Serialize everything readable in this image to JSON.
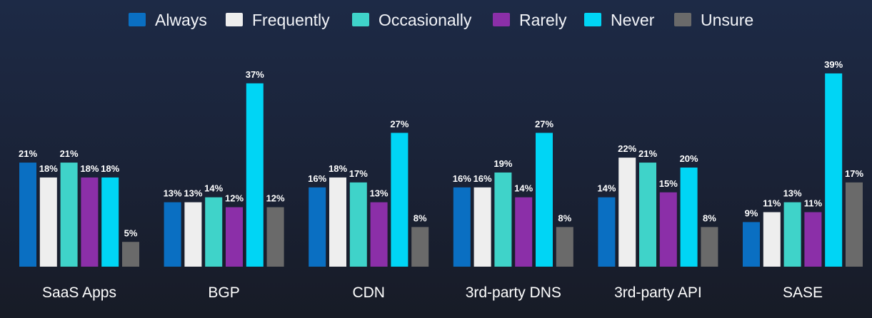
{
  "chart_data": {
    "type": "bar",
    "categories": [
      "SaaS Apps",
      "BGP",
      "CDN",
      "3rd-party DNS",
      "3rd-party API",
      "SASE"
    ],
    "series": [
      {
        "name": "Always",
        "color": "#0a6fc2",
        "values": [
          21,
          13,
          16,
          16,
          14,
          9
        ]
      },
      {
        "name": "Frequently",
        "color": "#eeeeee",
        "values": [
          18,
          13,
          18,
          16,
          22,
          11
        ]
      },
      {
        "name": "Occasionally",
        "color": "#3fd3c9",
        "values": [
          21,
          14,
          17,
          19,
          21,
          13
        ]
      },
      {
        "name": "Rarely",
        "color": "#8b2fa8",
        "values": [
          18,
          12,
          13,
          14,
          15,
          11
        ]
      },
      {
        "name": "Never",
        "color": "#00d5f5",
        "values": [
          18,
          37,
          27,
          27,
          20,
          39
        ]
      },
      {
        "name": "Unsure",
        "color": "#6a6a6a",
        "values": [
          5,
          12,
          8,
          8,
          8,
          17
        ]
      }
    ],
    "value_suffix": "%",
    "ylim": [
      0,
      40
    ],
    "grid": false,
    "legend_position": "top"
  }
}
